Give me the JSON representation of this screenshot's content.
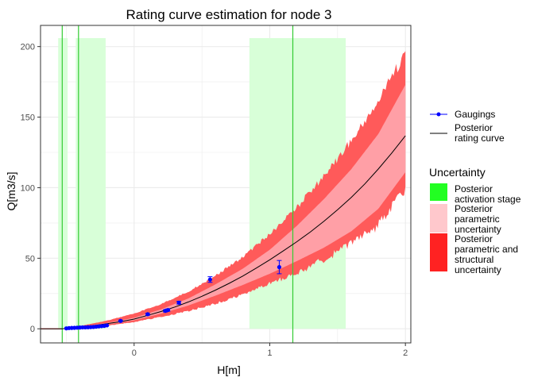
{
  "chart_data": {
    "type": "line",
    "title": "Rating curve estimation for node 3",
    "xlabel": "H[m]",
    "ylabel": "Q[m3/s]",
    "xlim": [
      -0.69,
      2.04
    ],
    "ylim": [
      -10,
      215
    ],
    "x_ticks": [
      0,
      1,
      2
    ],
    "y_ticks": [
      0,
      50,
      100,
      150,
      200
    ],
    "grid": true,
    "legend_position": "right",
    "colors": {
      "gaugings": "#0000ff",
      "posterior_curve": "#000000",
      "activation_band": "#d8ffd8",
      "activation_line": "#33cc33",
      "parametric": "#ff9fa6",
      "structural": "#ff5a5a",
      "panel_border": "#333333",
      "grid": "#ebebeb"
    },
    "activation_stage_lines": [
      -0.53,
      -0.41,
      1.17
    ],
    "activation_stage_bands": [
      [
        -0.56,
        -0.49
      ],
      [
        -0.43,
        -0.21
      ],
      [
        0.85,
        1.56
      ]
    ],
    "band_top": 206,
    "posterior_curve": {
      "x": [
        -0.69,
        -0.53,
        -0.5,
        -0.4,
        -0.3,
        -0.2,
        -0.1,
        0.0,
        0.1,
        0.2,
        0.3,
        0.4,
        0.5,
        0.6,
        0.7,
        0.8,
        0.9,
        1.0,
        1.1,
        1.2,
        1.3,
        1.4,
        1.5,
        1.6,
        1.7,
        1.8,
        1.9,
        2.0
      ],
      "y": [
        0,
        0,
        0.3,
        1.2,
        2.3,
        3.6,
        5.0,
        6.9,
        9.5,
        12.3,
        15.4,
        19.0,
        23.0,
        27.4,
        32.2,
        37.3,
        43.0,
        48.9,
        55.2,
        61.7,
        68.7,
        76.3,
        84.4,
        93.0,
        102.6,
        113.2,
        124.6,
        136.8
      ]
    },
    "parametric_uncertainty": {
      "x": [
        -0.53,
        -0.4,
        -0.2,
        0.0,
        0.2,
        0.4,
        0.6,
        0.8,
        1.0,
        1.2,
        1.4,
        1.6,
        1.8,
        2.0
      ],
      "lower": [
        0,
        1.0,
        3.0,
        6.0,
        10.8,
        16.5,
        23.5,
        31.0,
        39.0,
        48.0,
        57.5,
        69.0,
        85.0,
        111.0
      ],
      "upper": [
        0,
        1.4,
        4.2,
        7.8,
        13.8,
        21.5,
        31.5,
        42.5,
        56.0,
        73.0,
        92.0,
        113.0,
        138.0,
        173.0
      ]
    },
    "structural_uncertainty": {
      "x": [
        -0.53,
        -0.4,
        -0.2,
        0.0,
        0.2,
        0.4,
        0.6,
        0.8,
        1.0,
        1.2,
        1.4,
        1.6,
        1.8,
        2.0
      ],
      "lower": [
        0,
        0.6,
        2.0,
        4.5,
        8.0,
        12.0,
        17.0,
        23.0,
        30.5,
        37.5,
        46.5,
        56.5,
        69.5,
        95.0
      ],
      "upper": [
        0,
        2.0,
        6.0,
        11.0,
        18.0,
        27.0,
        38.5,
        52.0,
        68.5,
        88.0,
        111.0,
        136.0,
        165.0,
        200.0
      ]
    },
    "gaugings": {
      "x": [
        -0.5,
        -0.48,
        -0.46,
        -0.44,
        -0.42,
        -0.4,
        -0.38,
        -0.36,
        -0.34,
        -0.32,
        -0.3,
        -0.28,
        -0.26,
        -0.24,
        -0.22,
        -0.2,
        -0.1,
        0.1,
        0.23,
        0.25,
        0.33,
        0.56,
        1.07
      ],
      "y": [
        0.3,
        0.5,
        0.6,
        0.7,
        0.8,
        0.9,
        1.0,
        1.0,
        1.1,
        1.2,
        1.3,
        1.5,
        1.7,
        1.9,
        2.1,
        2.4,
        5.6,
        10.3,
        12.7,
        13.3,
        18.5,
        34.9,
        43.7
      ],
      "err": [
        0.1,
        0.1,
        0.1,
        0.1,
        0.1,
        0.1,
        0.1,
        0.1,
        0.1,
        0.1,
        0.1,
        0.1,
        0.1,
        0.1,
        0.1,
        0.2,
        0.5,
        0.7,
        0.8,
        0.8,
        1.0,
        2.0,
        4.7
      ]
    },
    "legend": {
      "gaugings": "Gaugings",
      "posterior_line1": "Posterior",
      "posterior_line2": "rating curve",
      "uncertainty_title": "Uncertainty",
      "activation_line1": "Posterior",
      "activation_line2": "activation stage",
      "parametric_line1": "Posterior",
      "parametric_line2": "parametric",
      "parametric_line3": "uncertainty",
      "structural_line1": "Posterior",
      "structural_line2": "parametric and",
      "structural_line3": "structural",
      "structural_line4": "uncertainty"
    }
  }
}
